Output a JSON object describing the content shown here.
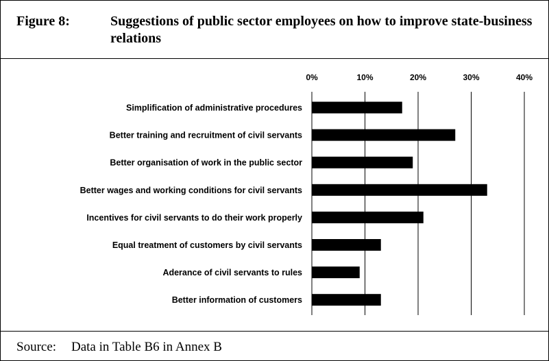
{
  "figure": {
    "number": "Figure 8:",
    "title": "Suggestions of public sector employees on how to improve state-business relations"
  },
  "source": {
    "label": "Source:",
    "text": "Data in Table B6 in Annex B"
  },
  "chart_data": {
    "type": "bar",
    "orientation": "horizontal",
    "categories": [
      "Simplification of administrative procedures",
      "Better training and recruitment of civil servants",
      "Better organisation of work in the public sector",
      "Better wages and working conditions for civil servants",
      "Incentives for civil servants to do their work properly",
      "Equal treatment of customers by civil servants",
      "Aderance of civil servants to rules",
      "Better information of customers"
    ],
    "values": [
      17,
      27,
      19,
      33,
      21,
      13,
      9,
      13
    ],
    "xlim": [
      0,
      40
    ],
    "ticks": [
      0,
      10,
      20,
      30,
      40
    ],
    "tick_labels": [
      "0%",
      "10%",
      "20%",
      "30%",
      "40%"
    ],
    "tick_position": "top",
    "grid": true,
    "bar_color": "#000000",
    "legend": "none"
  }
}
